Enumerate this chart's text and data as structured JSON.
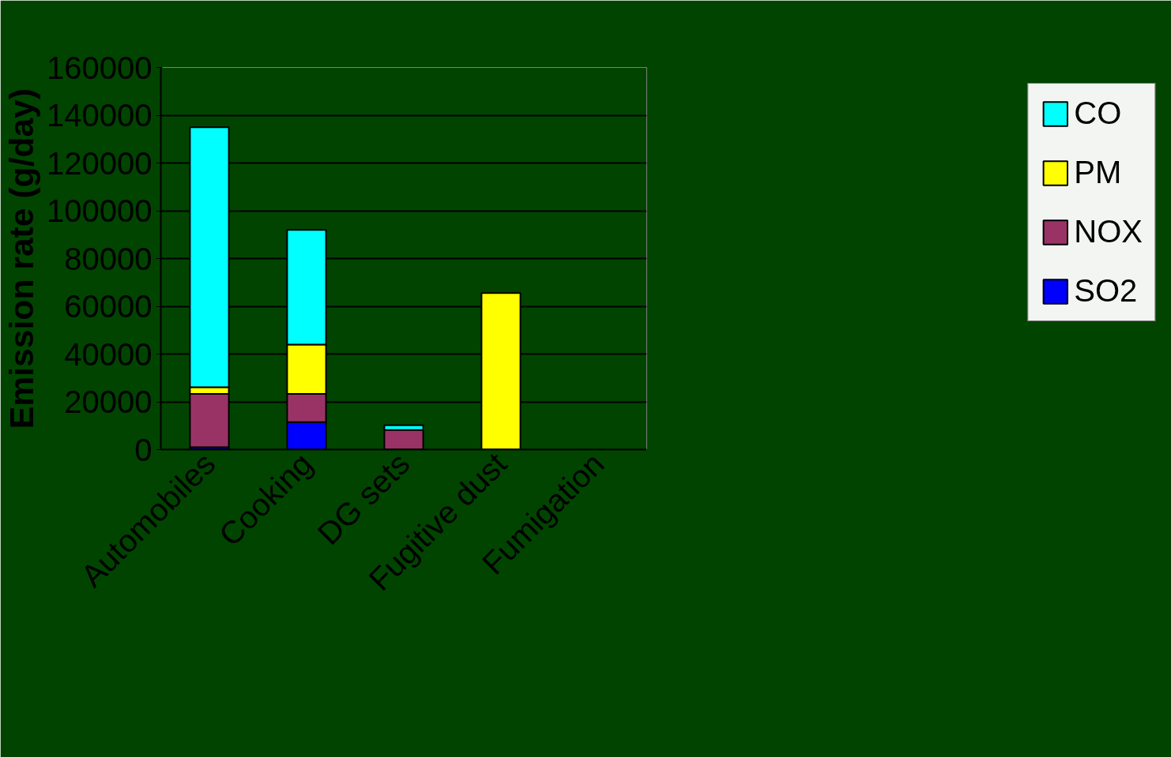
{
  "chart_data": {
    "type": "bar",
    "stacked": true,
    "ylabel": "Emission rate (g/day)",
    "categories": [
      "Automobiles",
      "Cooking",
      "DG sets",
      "Fugitive dust",
      "Fumigation"
    ],
    "series": [
      {
        "name": "SO2",
        "color": "#0000ff",
        "values": [
          1000,
          11500,
          null,
          null,
          null
        ]
      },
      {
        "name": "NOX",
        "color": "#993366",
        "values": [
          22300,
          11800,
          8200,
          null,
          null
        ]
      },
      {
        "name": "PM",
        "color": "#ffff00",
        "values": [
          2800,
          20700,
          null,
          65500,
          null
        ]
      },
      {
        "name": "CO",
        "color": "#00ffff",
        "values": [
          108900,
          48000,
          2000,
          null,
          null
        ]
      }
    ],
    "ylim": [
      0,
      160000
    ],
    "yticks": [
      0,
      20000,
      40000,
      60000,
      80000,
      100000,
      120000,
      140000,
      160000
    ],
    "grid": "y",
    "legend": "right"
  }
}
